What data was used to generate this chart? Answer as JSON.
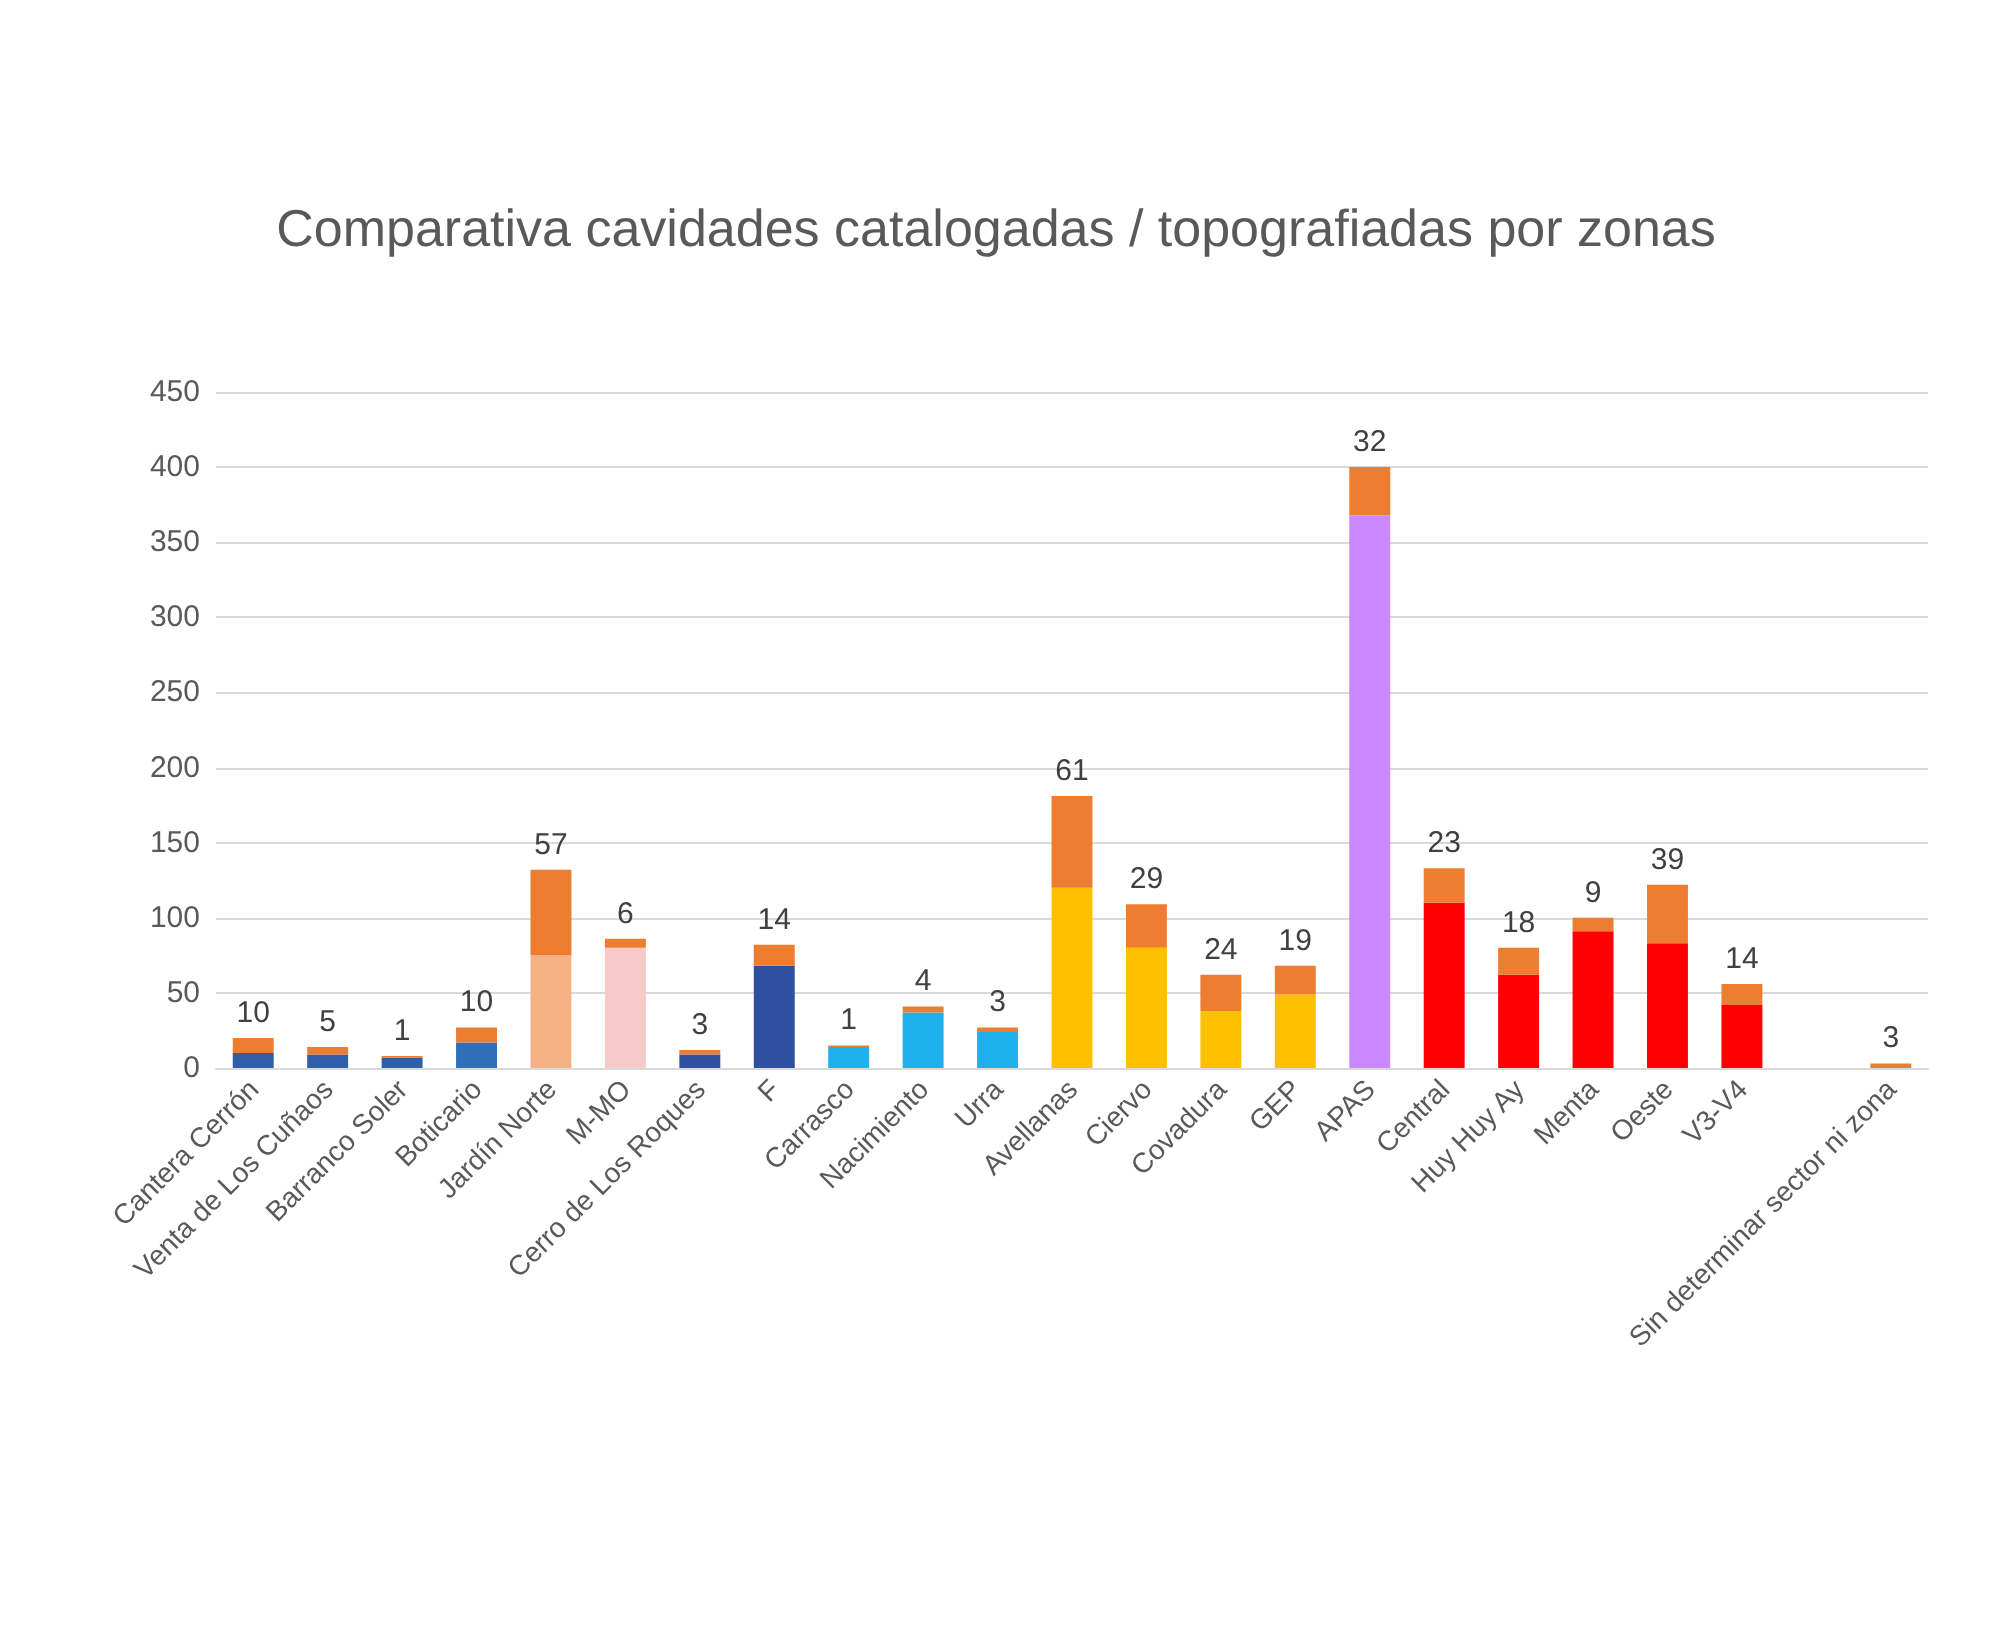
{
  "chart_data": {
    "type": "bar",
    "title": "Comparativa cavidades catalogadas / topografiadas por zonas",
    "categories": [
      "Cantera Cerrón",
      "Venta de Los Cuñaos",
      "Barranco Soler",
      "Boticario",
      "Jardín Norte",
      "M-MO",
      "Cerro de Los Roques",
      "F",
      "Carrasco",
      "Nacimiento",
      "Urra",
      "Avellanas",
      "Ciervo",
      "Covadura",
      "GEP",
      "APAS",
      "Central",
      "Huy Huy Ay",
      "Menta",
      "Oeste",
      "V3-V4",
      null,
      "Sin determinar sector ni zona"
    ],
    "stacked": true,
    "series": [
      {
        "colors": [
          "#2e5fa8",
          "#2e5fa8",
          "#2e5fa8",
          "#2e6fb8",
          "#f4b183",
          "#f8c9c9",
          "#2f4f9f",
          "#2f4f9f",
          "#1fb0ee",
          "#1fb0ee",
          "#1fb0ee",
          "#ffc000",
          "#ffc000",
          "#ffc000",
          "#ffc000",
          "#cc88ff",
          "#ff0000",
          "#ff0000",
          "#ff0000",
          "#ff0000",
          "#ff0000",
          null,
          "#f4b6c2"
        ],
        "values": [
          10,
          9,
          7,
          17,
          75,
          80,
          9,
          68,
          14,
          37,
          24,
          120,
          80,
          38,
          49,
          368,
          110,
          62,
          91,
          83,
          42,
          null,
          0
        ]
      },
      {
        "color": "#ed7d31",
        "values": [
          10,
          5,
          1,
          10,
          57,
          6,
          3,
          14,
          1,
          4,
          3,
          61,
          29,
          24,
          19,
          32,
          23,
          18,
          9,
          39,
          14,
          null,
          3
        ],
        "value_labels": [
          "10",
          "5",
          "1",
          "10",
          "57",
          "6",
          "3",
          "14",
          "1",
          "4",
          "3",
          "61",
          "29",
          "24",
          "19",
          "32",
          "23",
          "18",
          "9",
          "39",
          "14",
          null,
          "3"
        ]
      }
    ],
    "ylim": [
      0,
      450
    ],
    "yticks": [
      0,
      50,
      100,
      150,
      200,
      250,
      300,
      350,
      400,
      450
    ],
    "grid": "y"
  }
}
